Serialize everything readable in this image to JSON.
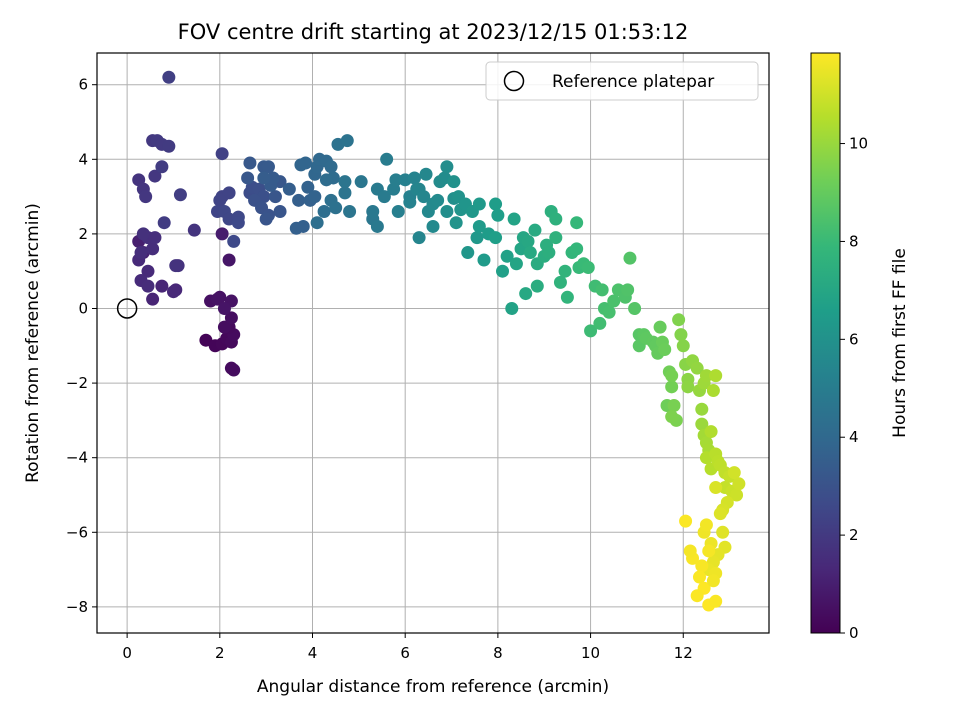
{
  "chart_data": {
    "type": "scatter",
    "title": "FOV centre drift starting at 2023/12/15 01:53:12",
    "xlabel": "Angular distance from reference (arcmin)",
    "ylabel": "Rotation from reference (arcmin)",
    "xlim": [
      -0.65,
      13.85
    ],
    "ylim": [
      -8.7,
      6.85
    ],
    "xticks": [
      0,
      2,
      4,
      6,
      8,
      10,
      12
    ],
    "yticks": [
      -8,
      -6,
      -4,
      -2,
      0,
      2,
      4,
      6
    ],
    "xtick_labels": [
      "0",
      "2",
      "4",
      "6",
      "8",
      "10",
      "12"
    ],
    "ytick_labels": [
      "−8",
      "−6",
      "−4",
      "−2",
      "0",
      "2",
      "4",
      "6"
    ],
    "grid": true,
    "legend": {
      "placement": "top-right",
      "entries": [
        "Reference platepar"
      ]
    },
    "reference_point": {
      "x": 0,
      "y": 0,
      "label": "Reference platepar"
    },
    "colorbar": {
      "label": "Hours from first FF file",
      "colormap": "viridis",
      "range": [
        0,
        11.85
      ],
      "ticks": [
        0,
        2,
        4,
        6,
        8,
        10
      ],
      "tick_labels": [
        "0",
        "2",
        "4",
        "6",
        "8",
        "10"
      ]
    },
    "colormap_stops": [
      "#440154",
      "#482878",
      "#3e4a89",
      "#31688e",
      "#26828e",
      "#1f9e89",
      "#35b779",
      "#6ece58",
      "#b5de2b",
      "#fde725"
    ],
    "points": [
      [
        1.7,
        -0.85,
        0.1
      ],
      [
        1.9,
        -1.0,
        0.15
      ],
      [
        2.05,
        -0.95,
        0.2
      ],
      [
        2.15,
        -0.8,
        0.25
      ],
      [
        2.25,
        -0.9,
        0.3
      ],
      [
        2.3,
        -0.7,
        0.35
      ],
      [
        2.2,
        -0.5,
        0.3
      ],
      [
        2.1,
        -0.5,
        0.4
      ],
      [
        2.25,
        -0.25,
        0.45
      ],
      [
        2.3,
        -1.65,
        0.4
      ],
      [
        2.25,
        -1.6,
        0.35
      ],
      [
        1.8,
        0.2,
        0.5
      ],
      [
        2.0,
        0.3,
        0.55
      ],
      [
        1.95,
        0.25,
        0.6
      ],
      [
        2.25,
        0.2,
        0.6
      ],
      [
        2.1,
        0.0,
        0.65
      ],
      [
        2.2,
        1.3,
        0.7
      ],
      [
        2.05,
        2.0,
        0.9
      ],
      [
        0.25,
        1.8,
        1.0
      ],
      [
        0.35,
        1.5,
        1.1
      ],
      [
        0.55,
        0.25,
        1.2
      ],
      [
        0.75,
        0.6,
        1.25
      ],
      [
        1.05,
        0.5,
        1.3
      ],
      [
        1.0,
        0.45,
        1.35
      ],
      [
        0.25,
        1.3,
        1.4
      ],
      [
        0.45,
        1.0,
        1.4
      ],
      [
        0.3,
        0.75,
        1.45
      ],
      [
        0.45,
        0.6,
        1.5
      ],
      [
        0.3,
        1.5,
        1.55
      ],
      [
        0.55,
        1.6,
        1.55
      ],
      [
        0.45,
        1.9,
        1.6
      ],
      [
        0.35,
        2.0,
        1.65
      ],
      [
        0.6,
        1.9,
        1.6
      ],
      [
        1.1,
        1.15,
        1.7
      ],
      [
        1.05,
        1.15,
        1.75
      ],
      [
        1.45,
        2.1,
        1.8
      ],
      [
        0.25,
        3.45,
        1.8
      ],
      [
        0.35,
        3.2,
        1.85
      ],
      [
        0.4,
        3.0,
        1.9
      ],
      [
        0.6,
        3.55,
        1.9
      ],
      [
        0.55,
        4.5,
        1.95
      ],
      [
        0.65,
        4.5,
        2.0
      ],
      [
        0.75,
        4.4,
        2.0
      ],
      [
        0.9,
        4.35,
        2.05
      ],
      [
        0.75,
        3.8,
        2.1
      ],
      [
        0.8,
        2.3,
        2.1
      ],
      [
        1.15,
        3.05,
        2.15
      ],
      [
        0.9,
        6.2,
        2.2
      ],
      [
        2.05,
        4.15,
        2.3
      ],
      [
        2.05,
        3.0,
        2.35
      ],
      [
        2.2,
        3.1,
        2.4
      ],
      [
        2.0,
        2.9,
        2.4
      ],
      [
        1.95,
        2.6,
        2.45
      ],
      [
        2.1,
        2.6,
        2.5
      ],
      [
        2.2,
        2.4,
        2.5
      ],
      [
        2.4,
        2.45,
        2.55
      ],
      [
        2.4,
        2.3,
        2.6
      ],
      [
        2.3,
        1.8,
        2.6
      ],
      [
        2.65,
        3.1,
        2.7
      ],
      [
        2.7,
        3.25,
        2.8
      ],
      [
        2.85,
        3.2,
        2.85
      ],
      [
        2.95,
        3.0,
        2.9
      ],
      [
        2.75,
        2.9,
        2.95
      ],
      [
        2.9,
        2.7,
        3.0
      ],
      [
        3.05,
        2.5,
        3.05
      ],
      [
        3.0,
        2.4,
        3.1
      ],
      [
        3.3,
        2.6,
        3.1
      ],
      [
        3.2,
        3.0,
        3.15
      ],
      [
        3.3,
        3.4,
        3.2
      ],
      [
        2.6,
        3.5,
        3.2
      ],
      [
        2.65,
        3.9,
        3.25
      ],
      [
        2.95,
        3.8,
        3.3
      ],
      [
        3.05,
        3.8,
        3.35
      ],
      [
        3.1,
        3.3,
        3.4
      ],
      [
        3.15,
        3.5,
        3.4
      ],
      [
        2.95,
        3.5,
        3.45
      ],
      [
        3.5,
        3.2,
        3.5
      ],
      [
        3.7,
        2.9,
        3.55
      ],
      [
        3.8,
        2.2,
        3.6
      ],
      [
        3.65,
        2.15,
        3.6
      ],
      [
        3.95,
        2.9,
        3.65
      ],
      [
        3.9,
        3.25,
        3.7
      ],
      [
        4.05,
        3.0,
        3.75
      ],
      [
        3.75,
        3.85,
        3.8
      ],
      [
        3.85,
        3.9,
        3.85
      ],
      [
        4.05,
        3.6,
        3.9
      ],
      [
        4.1,
        3.8,
        3.95
      ],
      [
        4.15,
        4.0,
        4.0
      ],
      [
        4.3,
        3.95,
        4.05
      ],
      [
        4.4,
        3.8,
        4.1
      ],
      [
        4.45,
        3.5,
        4.15
      ],
      [
        4.3,
        3.45,
        4.2
      ],
      [
        4.25,
        2.6,
        4.25
      ],
      [
        4.1,
        2.3,
        4.3
      ],
      [
        4.4,
        2.9,
        4.35
      ],
      [
        4.5,
        2.7,
        4.4
      ],
      [
        4.55,
        4.4,
        4.45
      ],
      [
        4.75,
        4.5,
        4.5
      ],
      [
        4.7,
        3.1,
        4.55
      ],
      [
        4.7,
        3.4,
        4.6
      ],
      [
        4.8,
        2.6,
        4.6
      ],
      [
        5.05,
        3.4,
        4.65
      ],
      [
        5.3,
        2.4,
        4.7
      ],
      [
        5.3,
        2.6,
        4.75
      ],
      [
        5.4,
        2.2,
        4.8
      ],
      [
        5.4,
        3.2,
        4.85
      ],
      [
        5.55,
        3.0,
        4.9
      ],
      [
        5.6,
        4.0,
        4.95
      ],
      [
        5.75,
        3.2,
        5.0
      ],
      [
        5.8,
        3.45,
        5.05
      ],
      [
        5.85,
        2.6,
        5.1
      ],
      [
        6.0,
        3.45,
        5.15
      ],
      [
        6.1,
        3.0,
        5.2
      ],
      [
        6.1,
        2.85,
        5.25
      ],
      [
        6.2,
        3.5,
        5.3
      ],
      [
        6.25,
        3.2,
        5.35
      ],
      [
        6.3,
        1.9,
        5.4
      ],
      [
        6.3,
        3.2,
        5.4
      ],
      [
        6.4,
        3.0,
        5.45
      ],
      [
        6.45,
        3.6,
        5.5
      ],
      [
        6.5,
        2.6,
        5.55
      ],
      [
        6.6,
        2.8,
        5.6
      ],
      [
        6.6,
        2.2,
        5.6
      ],
      [
        6.7,
        2.9,
        5.65
      ],
      [
        6.75,
        3.4,
        5.7
      ],
      [
        6.85,
        3.5,
        5.75
      ],
      [
        6.9,
        3.8,
        5.8
      ],
      [
        6.9,
        2.6,
        5.85
      ],
      [
        7.05,
        2.95,
        5.9
      ],
      [
        7.05,
        3.4,
        5.95
      ],
      [
        7.15,
        3.0,
        6.0
      ],
      [
        7.1,
        2.3,
        6.05
      ],
      [
        7.2,
        2.65,
        6.1
      ],
      [
        7.3,
        2.8,
        6.15
      ],
      [
        7.35,
        1.5,
        6.2
      ],
      [
        7.45,
        2.6,
        6.25
      ],
      [
        7.55,
        1.9,
        6.3
      ],
      [
        7.6,
        2.8,
        6.35
      ],
      [
        7.6,
        2.2,
        6.4
      ],
      [
        7.7,
        1.3,
        6.45
      ],
      [
        7.8,
        2.0,
        6.5
      ],
      [
        7.95,
        2.8,
        6.55
      ],
      [
        8.0,
        2.5,
        6.6
      ],
      [
        7.95,
        1.9,
        6.65
      ],
      [
        8.1,
        1.0,
        6.7
      ],
      [
        8.2,
        1.4,
        6.75
      ],
      [
        8.3,
        0.0,
        6.8
      ],
      [
        8.35,
        2.4,
        6.85
      ],
      [
        8.4,
        1.2,
        6.9
      ],
      [
        8.5,
        1.6,
        6.95
      ],
      [
        8.55,
        1.9,
        7.0
      ],
      [
        8.65,
        1.8,
        7.05
      ],
      [
        8.6,
        0.4,
        7.1
      ],
      [
        8.7,
        1.5,
        7.15
      ],
      [
        8.8,
        2.1,
        7.2
      ],
      [
        8.85,
        1.2,
        7.25
      ],
      [
        8.85,
        0.6,
        7.3
      ],
      [
        9.0,
        1.4,
        7.35
      ],
      [
        9.05,
        1.7,
        7.4
      ],
      [
        9.1,
        1.5,
        7.45
      ],
      [
        9.15,
        2.6,
        7.5
      ],
      [
        9.25,
        2.4,
        7.55
      ],
      [
        9.25,
        1.9,
        7.6
      ],
      [
        9.35,
        0.7,
        7.65
      ],
      [
        9.45,
        1.0,
        7.7
      ],
      [
        9.5,
        0.3,
        7.75
      ],
      [
        9.6,
        1.5,
        7.8
      ],
      [
        9.7,
        1.6,
        7.85
      ],
      [
        9.7,
        2.3,
        7.9
      ],
      [
        9.75,
        1.1,
        7.95
      ],
      [
        9.85,
        1.2,
        8.0
      ],
      [
        9.95,
        1.1,
        8.05
      ],
      [
        10.0,
        -0.6,
        8.1
      ],
      [
        10.1,
        0.6,
        8.15
      ],
      [
        10.2,
        -0.4,
        8.2
      ],
      [
        10.25,
        0.5,
        8.25
      ],
      [
        10.3,
        0.0,
        8.3
      ],
      [
        10.4,
        -0.1,
        8.35
      ],
      [
        10.5,
        0.2,
        8.4
      ],
      [
        10.6,
        0.5,
        8.45
      ],
      [
        10.75,
        0.3,
        8.5
      ],
      [
        10.8,
        0.5,
        8.55
      ],
      [
        10.85,
        1.35,
        8.6
      ],
      [
        10.95,
        0.0,
        8.65
      ],
      [
        11.05,
        -0.7,
        8.7
      ],
      [
        11.05,
        -1.0,
        8.75
      ],
      [
        11.15,
        -0.7,
        8.8
      ],
      [
        11.2,
        -0.8,
        8.85
      ],
      [
        11.35,
        -0.9,
        8.9
      ],
      [
        11.4,
        -1.0,
        8.95
      ],
      [
        11.45,
        -1.2,
        9.0
      ],
      [
        11.5,
        -0.5,
        9.05
      ],
      [
        11.55,
        -0.9,
        9.1
      ],
      [
        11.6,
        -1.1,
        9.15
      ],
      [
        11.65,
        -2.6,
        9.2
      ],
      [
        11.7,
        -1.7,
        9.25
      ],
      [
        11.75,
        -2.1,
        9.3
      ],
      [
        11.75,
        -1.8,
        9.35
      ],
      [
        11.8,
        -2.6,
        9.4
      ],
      [
        11.85,
        -3.0,
        9.45
      ],
      [
        11.75,
        -2.9,
        9.5
      ],
      [
        11.9,
        -0.3,
        9.55
      ],
      [
        11.95,
        -0.7,
        9.6
      ],
      [
        12.0,
        -1.0,
        9.65
      ],
      [
        12.05,
        -1.5,
        9.7
      ],
      [
        12.1,
        -1.9,
        9.75
      ],
      [
        12.1,
        -2.1,
        9.8
      ],
      [
        12.2,
        -1.4,
        9.85
      ],
      [
        12.3,
        -1.6,
        9.9
      ],
      [
        12.35,
        -2.2,
        9.95
      ],
      [
        12.4,
        -2.7,
        10.0
      ],
      [
        12.4,
        -3.1,
        10.05
      ],
      [
        12.45,
        -2.0,
        10.1
      ],
      [
        12.5,
        -1.8,
        10.15
      ],
      [
        12.45,
        -3.4,
        10.2
      ],
      [
        12.5,
        -3.6,
        10.25
      ],
      [
        12.55,
        -3.8,
        10.3
      ],
      [
        12.65,
        -2.2,
        10.35
      ],
      [
        12.7,
        -1.8,
        10.4
      ],
      [
        12.6,
        -3.3,
        10.45
      ],
      [
        12.5,
        -4.0,
        10.5
      ],
      [
        12.6,
        -4.3,
        10.55
      ],
      [
        12.7,
        -3.9,
        10.6
      ],
      [
        12.75,
        -4.1,
        10.65
      ],
      [
        12.8,
        -4.2,
        10.7
      ],
      [
        12.9,
        -4.4,
        10.75
      ],
      [
        12.9,
        -4.8,
        10.8
      ],
      [
        13.0,
        -4.5,
        10.85
      ],
      [
        13.05,
        -4.9,
        10.9
      ],
      [
        13.15,
        -5.0,
        10.95
      ],
      [
        13.2,
        -4.7,
        11.0
      ],
      [
        13.1,
        -4.4,
        11.05
      ],
      [
        12.95,
        -5.2,
        11.1
      ],
      [
        12.85,
        -5.4,
        11.15
      ],
      [
        12.7,
        -4.8,
        11.2
      ],
      [
        12.8,
        -5.5,
        11.25
      ],
      [
        12.85,
        -6.0,
        11.3
      ],
      [
        12.9,
        -6.4,
        11.35
      ],
      [
        12.75,
        -6.6,
        11.4
      ],
      [
        12.65,
        -6.8,
        11.45
      ],
      [
        12.55,
        -7.0,
        11.5
      ],
      [
        12.6,
        -6.3,
        11.55
      ],
      [
        12.45,
        -6.0,
        11.6
      ],
      [
        12.5,
        -5.8,
        11.65
      ],
      [
        12.55,
        -6.5,
        11.7
      ],
      [
        12.4,
        -6.9,
        11.75
      ],
      [
        12.35,
        -7.2,
        11.8
      ],
      [
        12.45,
        -7.5,
        11.85
      ],
      [
        12.3,
        -7.7,
        11.8
      ],
      [
        12.55,
        -7.95,
        11.85
      ],
      [
        12.7,
        -7.85,
        11.8
      ],
      [
        12.2,
        -6.7,
        11.75
      ],
      [
        12.15,
        -6.5,
        11.7
      ],
      [
        12.05,
        -5.7,
        11.8
      ],
      [
        12.7,
        -7.1,
        11.6
      ],
      [
        12.65,
        -7.3,
        11.65
      ]
    ]
  }
}
